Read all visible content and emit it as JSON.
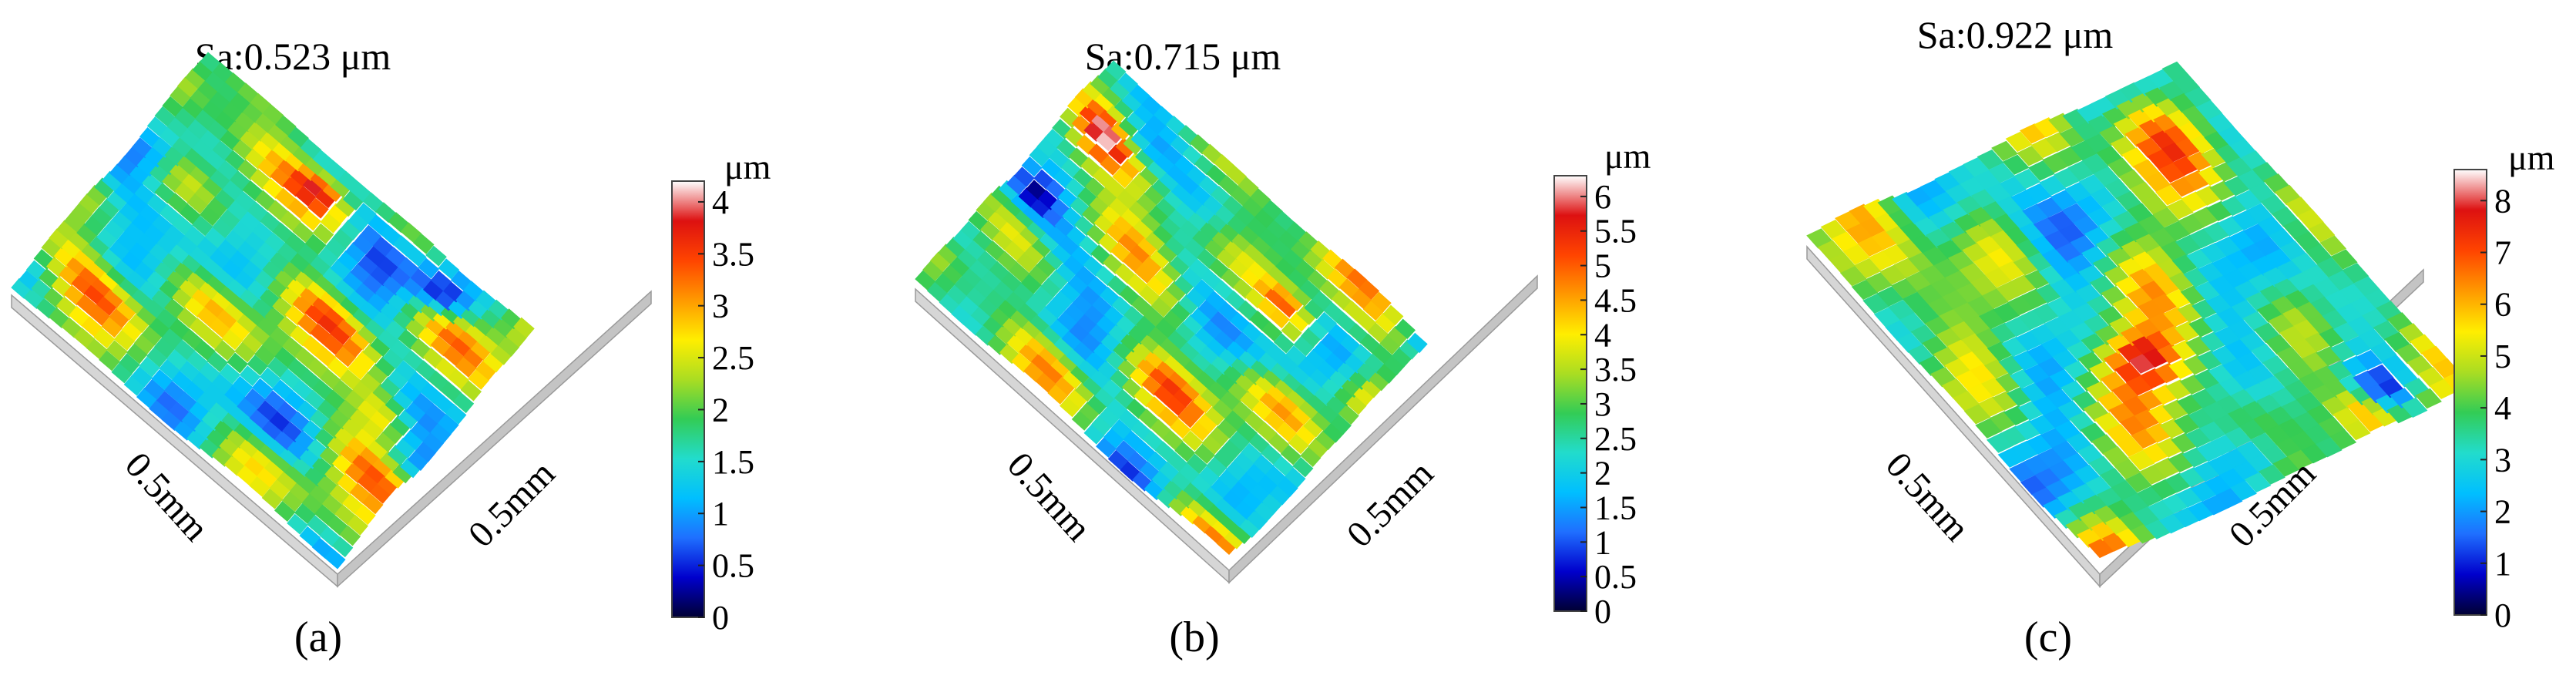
{
  "figure": {
    "colormap": [
      "#000033",
      "#0000cc",
      "#1f6fff",
      "#00bfff",
      "#22dccc",
      "#33cc55",
      "#aadd22",
      "#ffee00",
      "#ff9900",
      "#ff4400",
      "#dd1111",
      "#ffffff"
    ],
    "base_color": "#d6d6d6"
  },
  "chart_data": [
    {
      "type": "heatmap",
      "title": "Sa:0.523 μm",
      "caption": "(a)",
      "xlabel": "0.5mm",
      "ylabel": "0.5mm",
      "colorbar": {
        "unit": "μm",
        "range": [
          0,
          4.2
        ],
        "ticks": [
          "0",
          "0.5",
          "1",
          "1.5",
          "2",
          "2.5",
          "3",
          "3.5",
          "4"
        ]
      }
    },
    {
      "type": "heatmap",
      "title": "Sa:0.715 μm",
      "caption": "(b)",
      "xlabel": "0.5mm",
      "ylabel": "0.5mm",
      "colorbar": {
        "unit": "μm",
        "range": [
          0,
          6.3
        ],
        "ticks": [
          "0",
          "0.5",
          "1",
          "1.5",
          "2",
          "2.5",
          "3",
          "3.5",
          "4",
          "4.5",
          "5",
          "5.5",
          "6"
        ]
      }
    },
    {
      "type": "heatmap",
      "title": "Sa:0.922 μm",
      "caption": "(c)",
      "xlabel": "0.5mm",
      "ylabel": "0.5mm",
      "colorbar": {
        "unit": "μm",
        "range": [
          0,
          8.6
        ],
        "ticks": [
          "0",
          "1",
          "2",
          "3",
          "4",
          "5",
          "6",
          "7",
          "8"
        ]
      }
    }
  ]
}
